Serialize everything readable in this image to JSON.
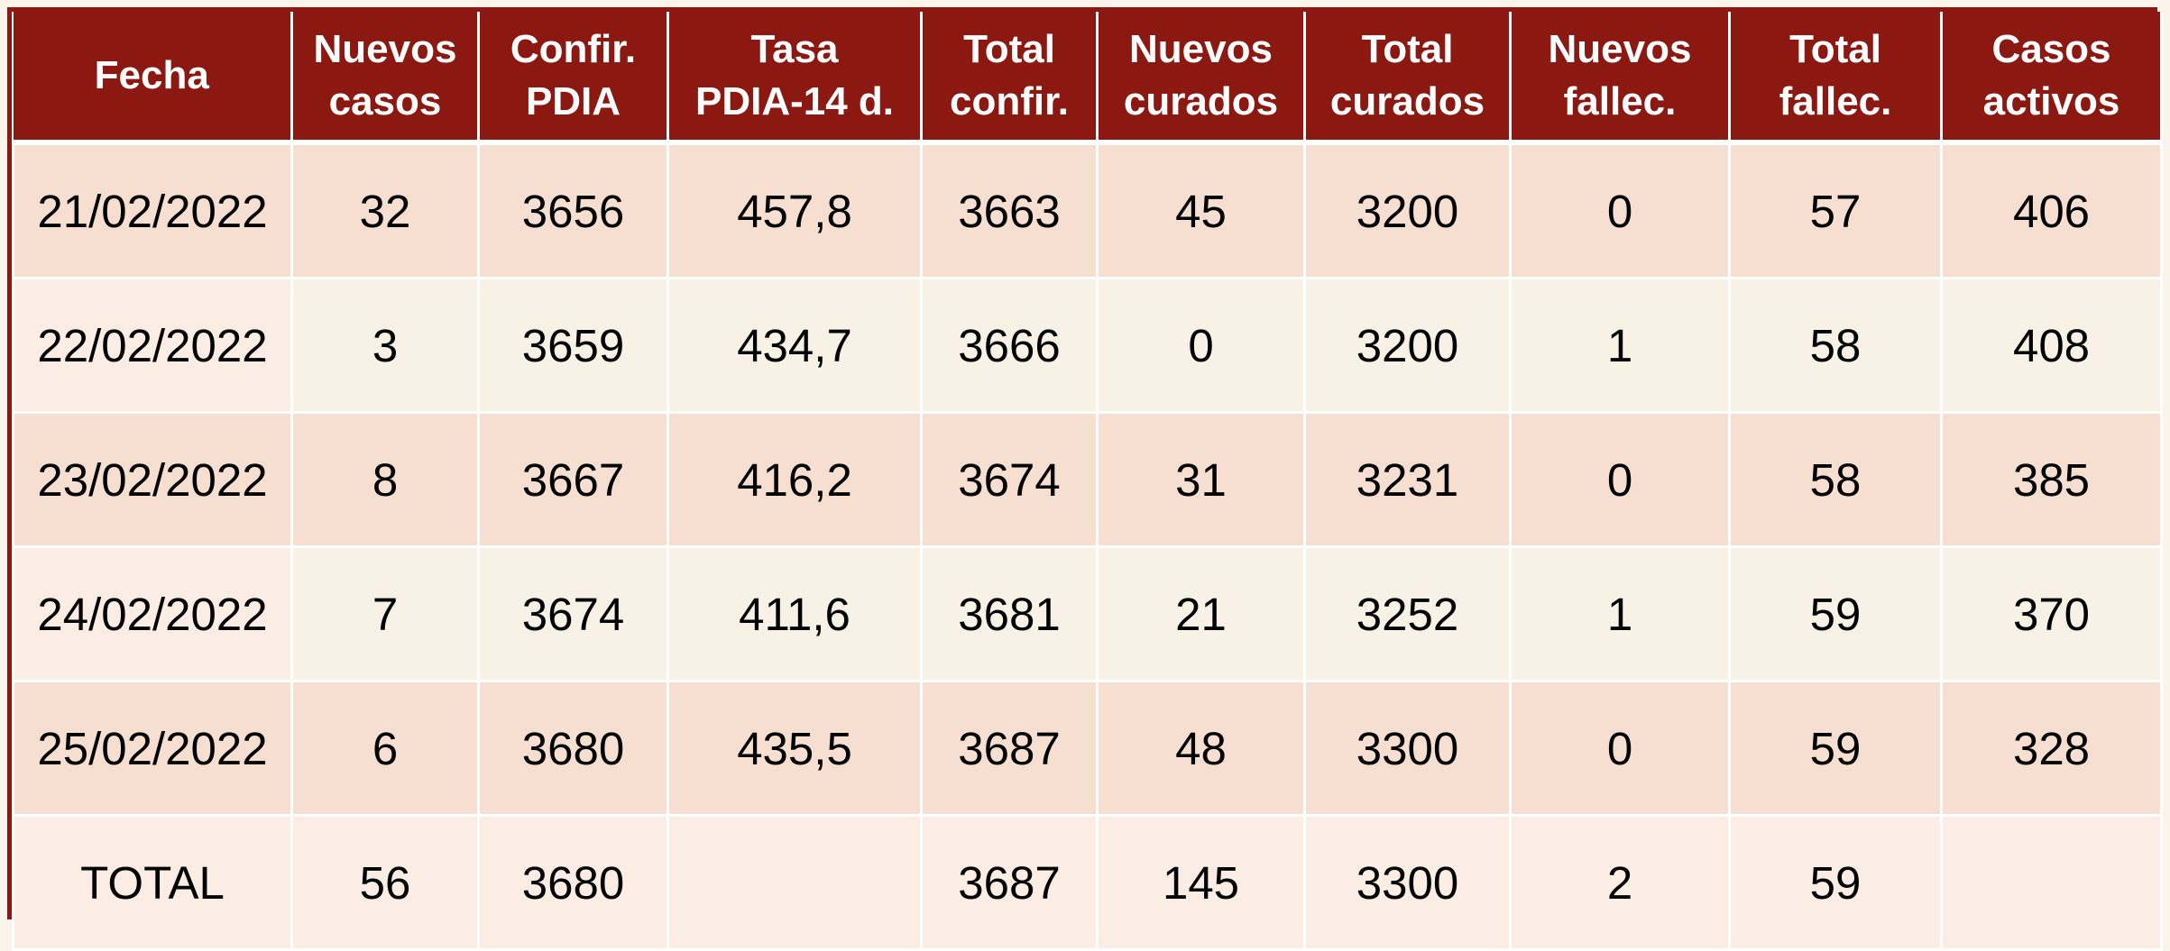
{
  "table": {
    "header": [
      "Fecha",
      "Nuevos\ncasos",
      "Confir.\nPDIA",
      "Tasa\nPDIA-14 d.",
      "Total\nconfir.",
      "Nuevos\ncurados",
      "Total\ncurados",
      "Nuevos\nfallec.",
      "Total\nfallec.",
      "Casos\nactivos"
    ],
    "rows": [
      [
        "21/02/2022",
        32,
        3656,
        "457,8",
        3663,
        45,
        3200,
        0,
        57,
        406
      ],
      [
        "22/02/2022",
        3,
        3659,
        "434,7",
        3666,
        0,
        3200,
        1,
        58,
        408
      ],
      [
        "23/02/2022",
        8,
        3667,
        "416,2",
        3674,
        31,
        3231,
        0,
        58,
        385
      ],
      [
        "24/02/2022",
        7,
        3674,
        "411,6",
        3681,
        21,
        3252,
        1,
        59,
        370
      ],
      [
        "25/02/2022",
        6,
        3680,
        "435,5",
        3687,
        48,
        3300,
        0,
        59,
        328
      ],
      [
        "TOTAL",
        56,
        3680,
        null,
        3687,
        145,
        3300,
        2,
        59,
        null
      ]
    ]
  }
}
